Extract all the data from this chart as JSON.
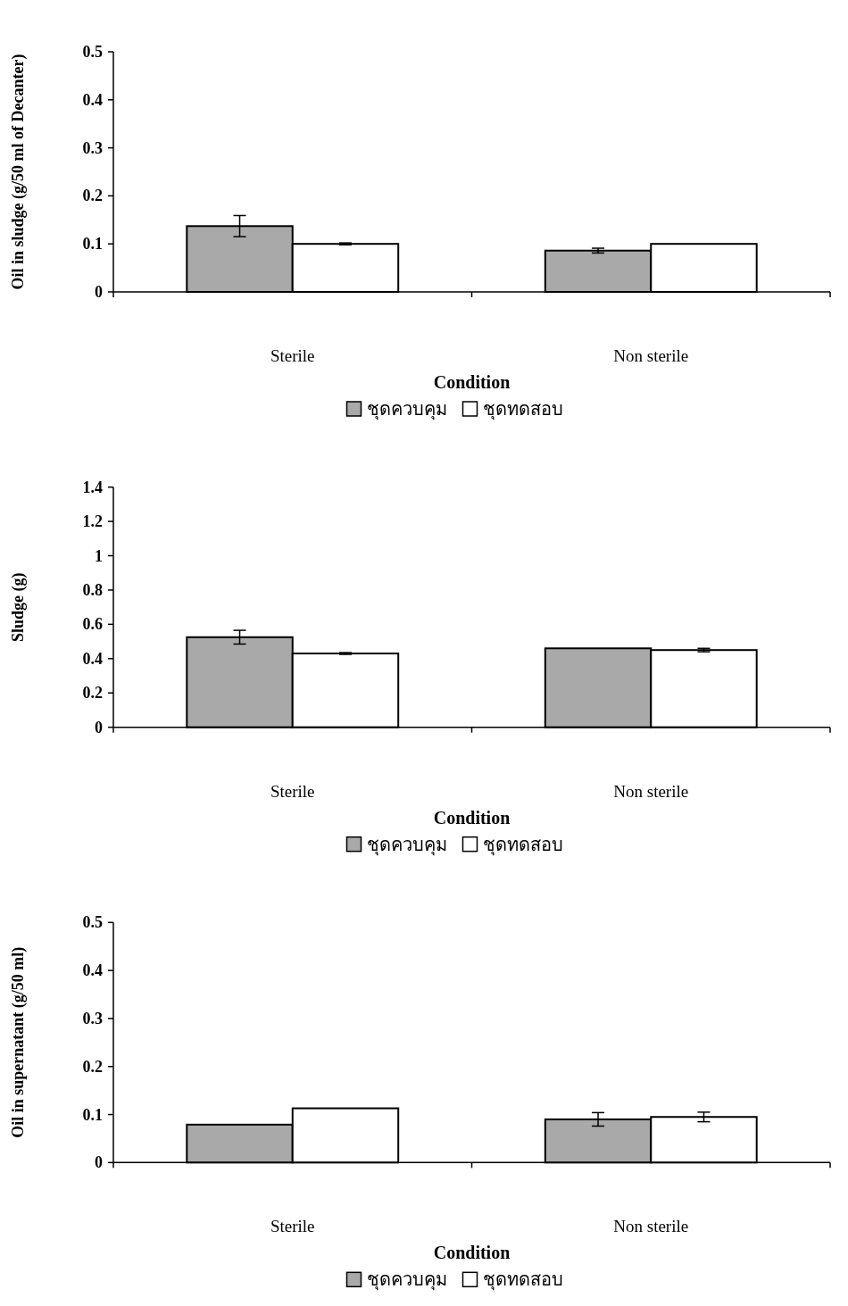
{
  "chart_data": [
    {
      "type": "bar",
      "ylabel": "Oil in sludge (g/50 ml of Decanter)",
      "xlabel": "Condition",
      "categories": [
        "Sterile",
        "Non sterile"
      ],
      "ylim": [
        0,
        0.5
      ],
      "yticks": [
        0,
        0.1,
        0.2,
        0.3,
        0.4,
        0.5
      ],
      "grid": false,
      "legend": "bottom",
      "series": [
        {
          "name": "ชุดควบคุม",
          "color": "#a9a9a9",
          "values": [
            0.137,
            0.086
          ],
          "errors": [
            0.022,
            0.005
          ]
        },
        {
          "name": "ชุดทดสอบ",
          "color": "#ffffff",
          "values": [
            0.1,
            0.1
          ],
          "errors": [
            0.002,
            null
          ]
        }
      ]
    },
    {
      "type": "bar",
      "ylabel": "Sludge (g)",
      "xlabel": "Condition",
      "categories": [
        "Sterile",
        "Non sterile"
      ],
      "ylim": [
        0,
        1.4
      ],
      "yticks": [
        0,
        0.2,
        0.4,
        0.6,
        0.8,
        1,
        1.2,
        1.4
      ],
      "grid": false,
      "legend": "bottom",
      "series": [
        {
          "name": "ชุดควบคุม",
          "color": "#a9a9a9",
          "values": [
            0.525,
            0.46
          ],
          "errors": [
            0.04,
            null
          ]
        },
        {
          "name": "ชุดทดสอบ",
          "color": "#ffffff",
          "values": [
            0.43,
            0.45
          ],
          "errors": [
            0.005,
            0.01
          ]
        }
      ]
    },
    {
      "type": "bar",
      "ylabel": "Oil in supernatant (g/50 ml)",
      "xlabel": "Condition",
      "categories": [
        "Sterile",
        "Non sterile"
      ],
      "ylim": [
        0,
        0.5
      ],
      "yticks": [
        0,
        0.1,
        0.2,
        0.3,
        0.4,
        0.5
      ],
      "grid": false,
      "legend": "bottom",
      "series": [
        {
          "name": "ชุดควบคุม",
          "color": "#a9a9a9",
          "values": [
            0.079,
            0.09
          ],
          "errors": [
            null,
            0.014
          ]
        },
        {
          "name": "ชุดทดสอบ",
          "color": "#ffffff",
          "values": [
            0.113,
            0.095
          ],
          "errors": [
            null,
            0.01
          ]
        }
      ]
    }
  ]
}
